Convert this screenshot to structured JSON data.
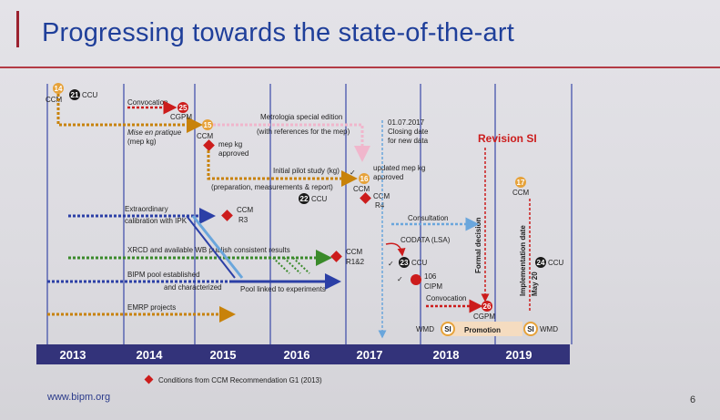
{
  "slide": {
    "title": "Progressing towards the state-of-the-art",
    "footer_url": "www.bipm.org",
    "page_number": "6"
  },
  "years": [
    "2013",
    "2014",
    "2015",
    "2016",
    "2017",
    "2018",
    "2019"
  ],
  "labels": {
    "ccm_2013": "CCM",
    "ccu_2013": "CCU",
    "convocation_2014": "Convocation",
    "cgpm_2014": "CGPM",
    "mise_en_pratique": "Mise en pratique",
    "mep_kg": "(mep kg)",
    "ccm_2015": "CCM",
    "mep_kg_approved_1": "mep kg",
    "mep_kg_approved_2": "approved",
    "metrologia_1": "Metrologia special edition",
    "metrologia_2": "(with references for the mep)",
    "pilot_study": "Initial pilot study (kg)",
    "pilot_details": "(preparation, measurements & report)",
    "ccu_2016": "CCU",
    "updated_mep_1": "updated mep kg",
    "updated_mep_2": "approved",
    "ccm_2017": "CCM",
    "ccm_r4_1": "CCM",
    "ccm_r4_2": "R4",
    "closing_1": "01.07.2017",
    "closing_2": "Closing date",
    "closing_3": "for new data",
    "revision_si": "Revision SI",
    "ccm_2019": "CCM",
    "extraordinary_1": "Extraordinary",
    "extraordinary_2": "calibration with IPK",
    "ccm_r3_1": "CCM",
    "ccm_r3_2": "R3",
    "consultation": "Consultation",
    "codata": "CODATA (LSA)",
    "xrcd": "XRCD and available WB publish consistent results",
    "ccm_r12_1": "CCM",
    "ccm_r12_2": "R1&2",
    "ccu_2017": "CCU",
    "cipm_1": "106",
    "cipm_2": "CIPM",
    "formal_decision": "Formal decision",
    "implementation_date": "Implementation date",
    "may20": "May 20",
    "ccu_2019": "CCU",
    "bipm_pool_1": "BIPM pool established",
    "bipm_pool_2": "and characterized",
    "pool_linked": "Pool linked to experiments",
    "emrp": "EMRP projects",
    "convocation_2018": "Convocation",
    "cgpm_2018": "CGPM",
    "wmd": "WMD",
    "promotion": "Promotion",
    "si": "SI",
    "legend": "Conditions from CCM Recommendation G1 (2013)"
  },
  "meeting_numbers": {
    "ccm_2013": "14",
    "ccu_2013": "21",
    "cgpm_2014": "25",
    "ccm_2015": "15",
    "ccu_2016": "22",
    "ccm_2017": "16",
    "ccu_2017": "23",
    "ccm_2019": "17",
    "cgpm_2018": "26",
    "ccu_2019": "24"
  },
  "colors": {
    "title": "#1f3f9a",
    "year_bar": "#33337a",
    "orange_track": "#c8820a",
    "blue_track": "#2b3fa6",
    "light_blue_track": "#6aa6dc",
    "green_track": "#3a8a2a",
    "pink_track": "#f0b6cc",
    "red": "#cc1c1c",
    "ccm_circle": "#e6a23a",
    "promotion_band": "#f5dcc0",
    "revision_si": "#cc1c1c"
  }
}
